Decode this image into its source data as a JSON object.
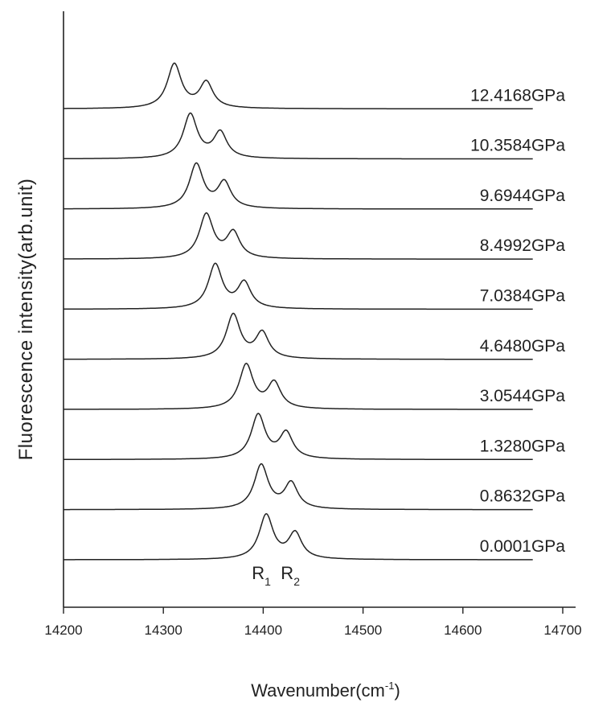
{
  "chart_data": {
    "type": "line",
    "xlabel": "Wavenumber(cm",
    "xlabel_sup": "-1",
    "xlabel_tail": ")",
    "ylabel": "Fluorescence intensity(arb.unit)",
    "xlim": [
      14200,
      14700
    ],
    "x_ticks": [
      "14200",
      "14300",
      "14400",
      "14500",
      "14600",
      "14700"
    ],
    "grid": false,
    "legend": "none",
    "line_color": "#222222",
    "series": [
      {
        "label": "0.0001GPa",
        "r1": 14403,
        "r2": 14432
      },
      {
        "label": "0.8632GPa",
        "r1": 14398,
        "r2": 14428
      },
      {
        "label": "1.3280GPa",
        "r1": 14395,
        "r2": 14423
      },
      {
        "label": "3.0544GPa",
        "r1": 14383,
        "r2": 14411
      },
      {
        "label": "4.6480GPa",
        "r1": 14370,
        "r2": 14399
      },
      {
        "label": "7.0384GPa",
        "r1": 14352,
        "r2": 14381
      },
      {
        "label": "8.4992GPa",
        "r1": 14343,
        "r2": 14370
      },
      {
        "label": "9.6944GPa",
        "r1": 14333,
        "r2": 14361
      },
      {
        "label": "10.3584GPa",
        "r1": 14327,
        "r2": 14357
      },
      {
        "label": "12.4168GPa",
        "r1": 14311,
        "r2": 14343
      }
    ],
    "annotations": [
      {
        "text": "R",
        "sub": "1"
      },
      {
        "text": "R",
        "sub": "2"
      }
    ]
  }
}
